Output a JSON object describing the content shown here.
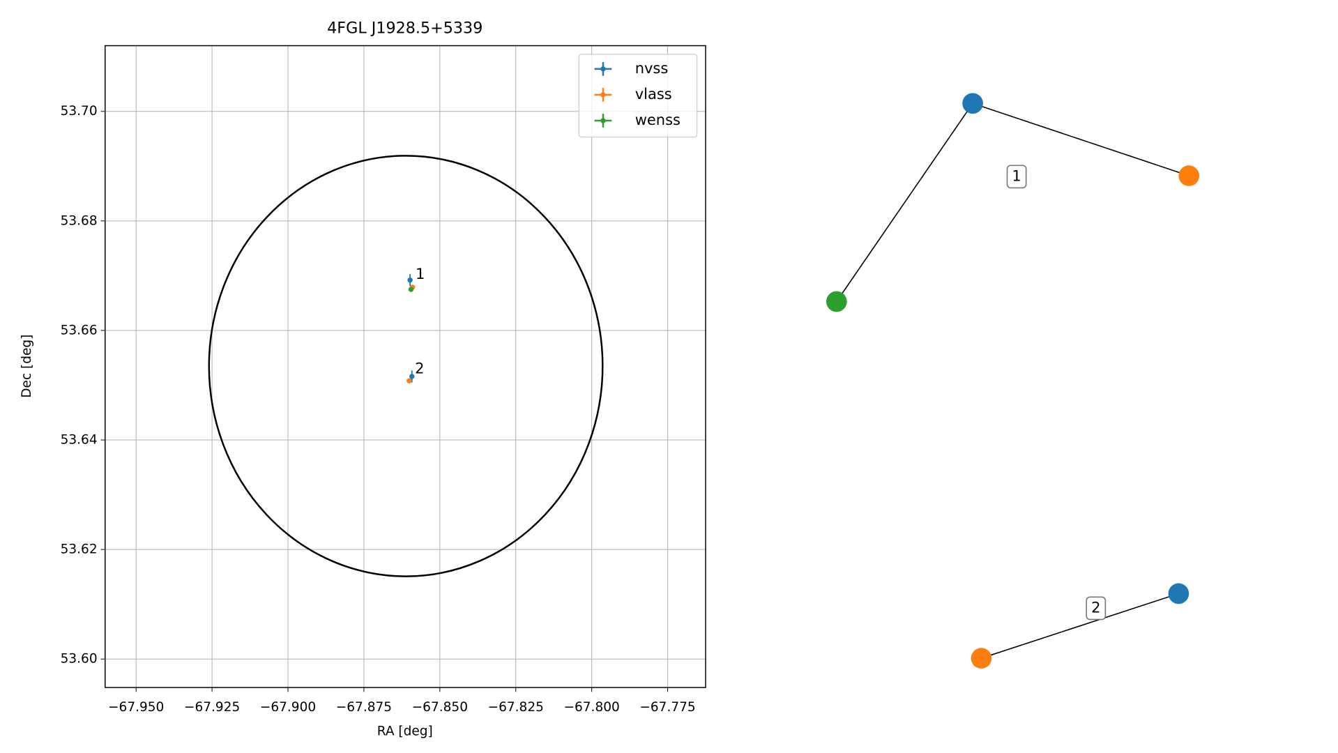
{
  "chart_data": [
    {
      "type": "scatter",
      "title": "4FGL J1928.5+5339",
      "x_label": "RA [deg]",
      "y_label": "Dec [deg]",
      "xlim": [
        -67.9602,
        -67.7625
      ],
      "ylim": [
        53.5948,
        53.712
      ],
      "xticks": [
        {
          "value": -67.95,
          "label": "−67.950"
        },
        {
          "value": -67.925,
          "label": "−67.925"
        },
        {
          "value": -67.9,
          "label": "−67.900"
        },
        {
          "value": -67.875,
          "label": "−67.875"
        },
        {
          "value": -67.85,
          "label": "−67.850"
        },
        {
          "value": -67.825,
          "label": "−67.825"
        },
        {
          "value": -67.8,
          "label": "−67.800"
        },
        {
          "value": -67.775,
          "label": "−67.775"
        }
      ],
      "yticks": [
        {
          "value": 53.6,
          "label": "53.60"
        },
        53.62,
        53.64,
        53.66,
        53.68,
        {
          "value": 53.7,
          "label": "53.70"
        }
      ],
      "grid": true,
      "legend": "upper right",
      "series": [
        {
          "name": "nvss",
          "color": "#1f77b4",
          "x": [
            -67.8598,
            -67.8592
          ],
          "y": [
            53.6692,
            53.6516
          ],
          "yerr": [
            0.0011,
            0.0011
          ]
        },
        {
          "name": "vlass",
          "color": "#ff7f0e",
          "x": [
            -67.859,
            -67.8601
          ],
          "y": [
            53.6679,
            53.6508
          ],
          "yerr": [
            0.0003,
            0.0003
          ]
        },
        {
          "name": "wenss",
          "color": "#2ca02c",
          "x": [
            -67.8595,
            null
          ],
          "y": [
            53.6675,
            null
          ],
          "yerr": [
            0.0004,
            null
          ]
        }
      ],
      "annotations": [
        {
          "text": "1",
          "x": -67.858,
          "y": 53.6702
        },
        {
          "text": "2",
          "x": -67.8582,
          "y": 53.6529
        }
      ],
      "circle": {
        "center": [
          -67.8612,
          53.6535
        ],
        "radius": 0.0384
      }
    },
    {
      "type": "network",
      "nodes": [
        {
          "color": "#1f77b4"
        },
        {
          "color": "#ff7f0e"
        },
        {
          "color": "#2ca02c"
        },
        {
          "color": "#1f77b4"
        },
        {
          "color": "#ff7f0e"
        }
      ],
      "edges": [
        [
          0,
          1
        ],
        [
          0,
          2
        ],
        [
          3,
          4
        ]
      ],
      "groups": [
        {
          "label": "1"
        },
        {
          "label": "2"
        }
      ]
    }
  ]
}
